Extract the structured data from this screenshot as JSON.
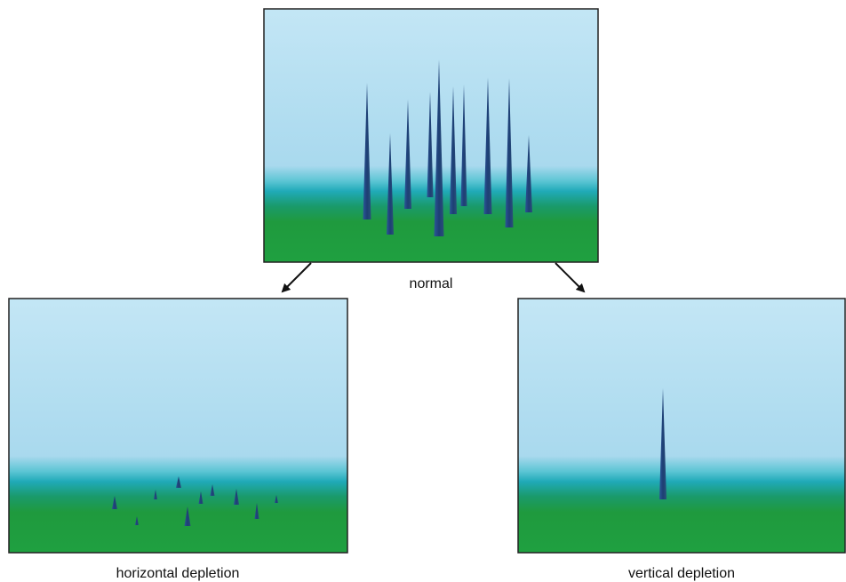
{
  "panels": [
    {
      "label": "normal"
    },
    {
      "label": "horizontal depletion"
    },
    {
      "label": "vertical depletion"
    }
  ]
}
